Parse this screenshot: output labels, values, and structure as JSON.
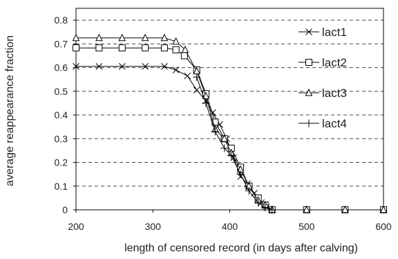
{
  "chart_data": {
    "type": "line",
    "xlabel": "length of censored record (in days after calving)",
    "ylabel": "average reappearance fraction",
    "xlim": [
      200,
      600
    ],
    "ylim": [
      0,
      0.85
    ],
    "x_ticks": [
      200,
      300,
      400,
      500,
      600
    ],
    "y_ticks": [
      0,
      0.1,
      0.2,
      0.3,
      0.4,
      0.5,
      0.6,
      0.7,
      0.8
    ],
    "grid": "horizontal dashed",
    "legend_position": "right",
    "series": [
      {
        "name": "lact1",
        "marker": "x",
        "points": [
          [
            200,
            0.605
          ],
          [
            230,
            0.605
          ],
          [
            260,
            0.605
          ],
          [
            290,
            0.605
          ],
          [
            315,
            0.605
          ],
          [
            330,
            0.59
          ],
          [
            345,
            0.565
          ],
          [
            357,
            0.505
          ],
          [
            369,
            0.46
          ],
          [
            378,
            0.41
          ],
          [
            387,
            0.36
          ],
          [
            396,
            0.3
          ],
          [
            405,
            0.22
          ],
          [
            414,
            0.14
          ],
          [
            423,
            0.11
          ],
          [
            432,
            0.07
          ],
          [
            441,
            0.03
          ],
          [
            448,
            0.01
          ],
          [
            455,
            0.0
          ],
          [
            500,
            0.0
          ],
          [
            550,
            0.0
          ],
          [
            600,
            0.0
          ]
        ]
      },
      {
        "name": "lact2",
        "marker": "square",
        "points": [
          [
            200,
            0.683
          ],
          [
            230,
            0.683
          ],
          [
            260,
            0.683
          ],
          [
            290,
            0.683
          ],
          [
            315,
            0.683
          ],
          [
            330,
            0.675
          ],
          [
            341,
            0.65
          ],
          [
            357,
            0.59
          ],
          [
            369,
            0.49
          ],
          [
            381,
            0.37
          ],
          [
            393,
            0.3
          ],
          [
            402,
            0.26
          ],
          [
            414,
            0.18
          ],
          [
            425,
            0.1
          ],
          [
            437,
            0.05
          ],
          [
            446,
            0.02
          ],
          [
            455,
            0.0
          ],
          [
            500,
            0.0
          ],
          [
            550,
            0.0
          ],
          [
            600,
            0.0
          ]
        ]
      },
      {
        "name": "lact3",
        "marker": "triangle",
        "points": [
          [
            200,
            0.725
          ],
          [
            230,
            0.725
          ],
          [
            260,
            0.725
          ],
          [
            290,
            0.725
          ],
          [
            315,
            0.725
          ],
          [
            330,
            0.71
          ],
          [
            342,
            0.675
          ],
          [
            357,
            0.585
          ],
          [
            369,
            0.48
          ],
          [
            381,
            0.34
          ],
          [
            393,
            0.3
          ],
          [
            402,
            0.24
          ],
          [
            414,
            0.17
          ],
          [
            425,
            0.1
          ],
          [
            437,
            0.04
          ],
          [
            446,
            0.02
          ],
          [
            455,
            0.0
          ],
          [
            500,
            0.0
          ],
          [
            550,
            0.0
          ],
          [
            600,
            0.0
          ]
        ]
      },
      {
        "name": "lact4",
        "marker": "plus",
        "points": [
          [
            357,
            0.56
          ],
          [
            369,
            0.45
          ],
          [
            381,
            0.33
          ],
          [
            393,
            0.26
          ],
          [
            402,
            0.23
          ],
          [
            414,
            0.15
          ],
          [
            425,
            0.08
          ],
          [
            437,
            0.03
          ],
          [
            446,
            0.01
          ],
          [
            455,
            0.0
          ]
        ]
      }
    ],
    "colors": {
      "line": "#000000",
      "grid": "#444444",
      "frame": "#000000"
    }
  }
}
